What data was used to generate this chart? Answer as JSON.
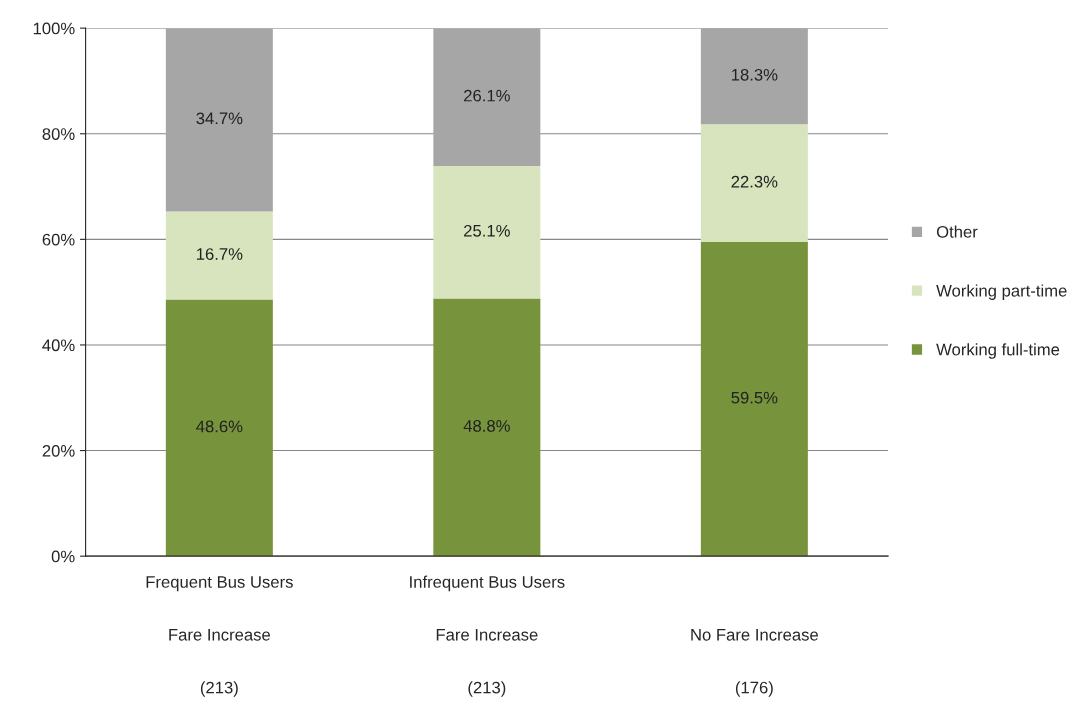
{
  "chart_data": {
    "type": "bar",
    "stacked": true,
    "categories": [
      "Frequent Bus Users\n\nFare Increase\n\n(213)",
      "Infrequent Bus Users\n\nFare Increase\n\n(213)",
      "\n\nNo Fare Increase\n\n(176)"
    ],
    "series": [
      {
        "name": "Working full-time",
        "color": "#77933c",
        "values": [
          48.6,
          48.8,
          59.5
        ],
        "value_labels": [
          "48.6%",
          "48.8%",
          "59.5%"
        ]
      },
      {
        "name": "Working part-time",
        "color": "#d7e4bd",
        "values": [
          16.7,
          25.1,
          22.3
        ],
        "value_labels": [
          "16.7%",
          "25.1%",
          "22.3%"
        ]
      },
      {
        "name": "Other",
        "color": "#a6a6a6",
        "values": [
          34.7,
          26.1,
          18.3
        ],
        "value_labels": [
          "34.7%",
          "26.1%",
          "18.3%"
        ]
      }
    ],
    "ylim": [
      0,
      100
    ],
    "yticks": [
      {
        "value": 0,
        "label": "0%"
      },
      {
        "value": 20,
        "label": "20%"
      },
      {
        "value": 40,
        "label": "40%"
      },
      {
        "value": 60,
        "label": "60%"
      },
      {
        "value": 80,
        "label": "80%"
      },
      {
        "value": 100,
        "label": "100%"
      }
    ],
    "grid": "y",
    "legend": "right"
  }
}
